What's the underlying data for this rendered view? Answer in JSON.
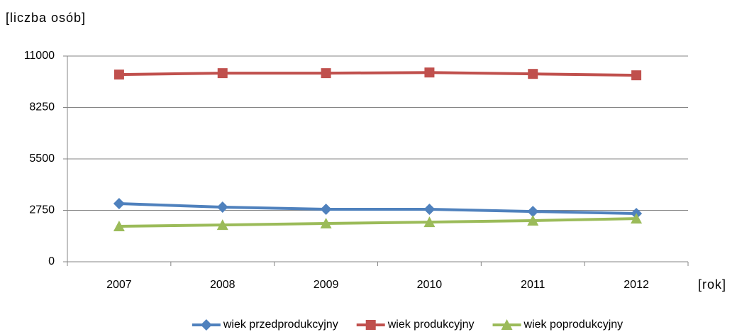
{
  "chart_data": {
    "type": "line",
    "y_label": "[liczba osób]",
    "x_label": "[rok]",
    "categories": [
      "2007",
      "2008",
      "2009",
      "2010",
      "2011",
      "2012"
    ],
    "series": [
      {
        "name": "wiek przedprodukcyjny",
        "color": "#4f81bd",
        "marker": "diamond",
        "values": [
          3110,
          2920,
          2805,
          2805,
          2690,
          2580
        ]
      },
      {
        "name": "wiek produkcyjny",
        "color": "#c0504d",
        "marker": "square",
        "values": [
          10010,
          10085,
          10085,
          10120,
          10045,
          9970
        ]
      },
      {
        "name": "wiek poprodukcyjny",
        "color": "#9bbb59",
        "marker": "triangle",
        "values": [
          1895,
          1970,
          2050,
          2120,
          2200,
          2310
        ]
      }
    ],
    "ylim": [
      0,
      11000
    ],
    "yticks": [
      0,
      2750,
      5500,
      8250,
      11000
    ],
    "grid": true,
    "legend": "bottom"
  }
}
